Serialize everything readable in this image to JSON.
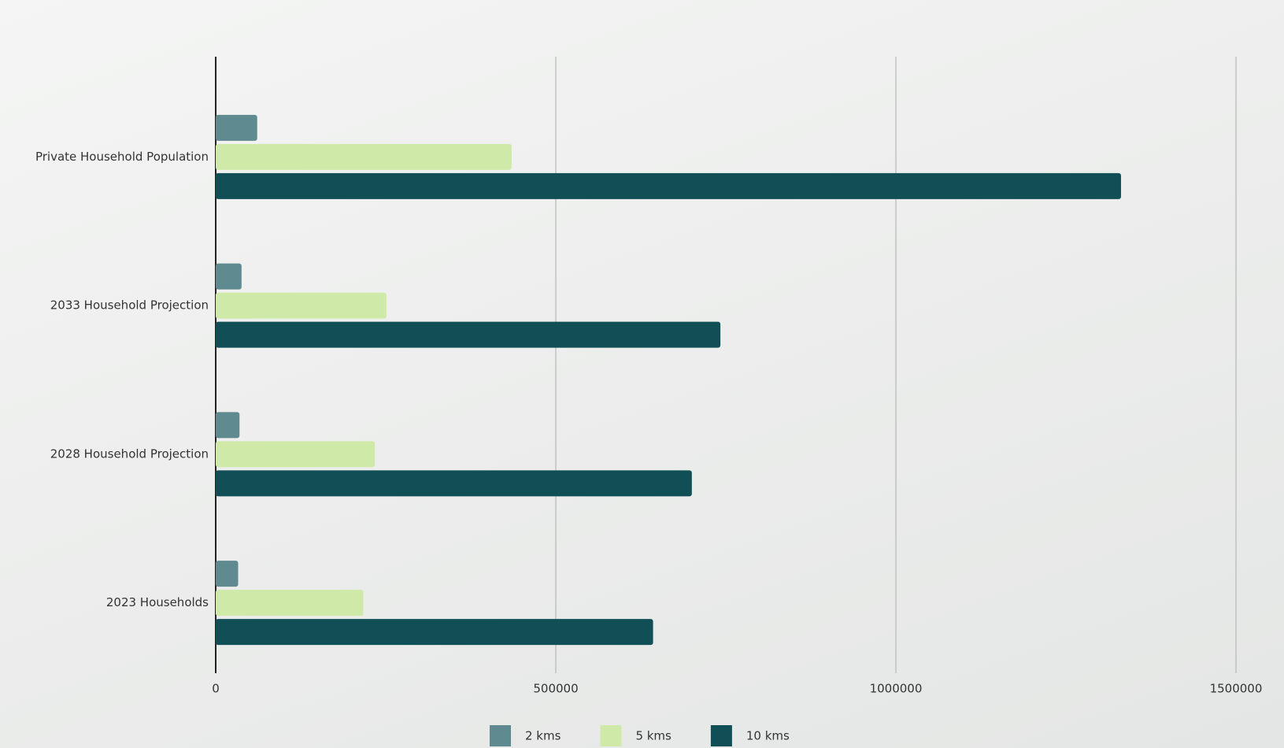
{
  "chart_data": {
    "type": "bar",
    "orientation": "horizontal",
    "categories": [
      "Private Household Population",
      "2033 Household Projection",
      "2028 Household Projection",
      "2023 Households"
    ],
    "series": [
      {
        "name": "2 kms",
        "color": "#5f8a8f",
        "values": [
          61000,
          38000,
          35000,
          33000
        ]
      },
      {
        "name": "5 kms",
        "color": "#cfeaa8",
        "values": [
          435000,
          251000,
          234000,
          217000
        ]
      },
      {
        "name": "10 kms",
        "color": "#0f4f55",
        "values": [
          1331000,
          742000,
          700000,
          643000
        ]
      }
    ],
    "xlim": [
      0,
      1500000
    ],
    "xticks": [
      0,
      500000,
      1000000,
      1500000
    ],
    "grid": true,
    "legend": "bottom"
  }
}
